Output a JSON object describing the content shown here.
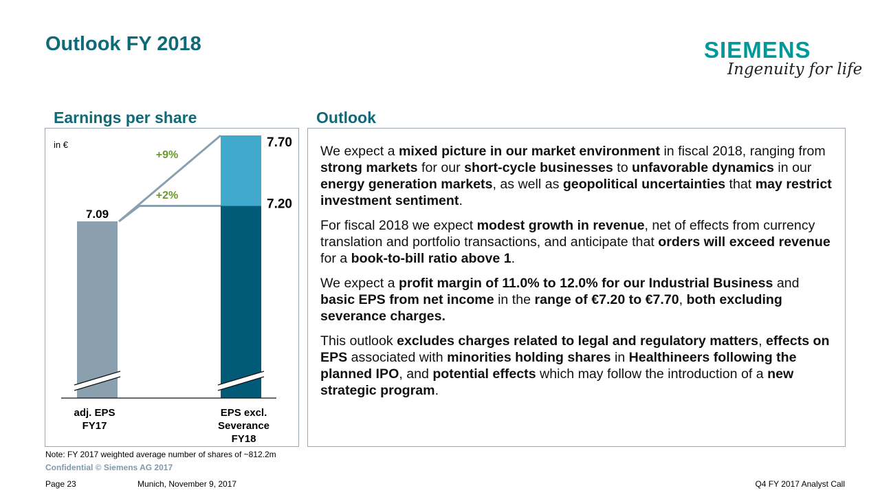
{
  "header": {
    "title": "Outlook FY 2018",
    "logo_text": "SIEMENS",
    "tagline": "Ingenuity for life"
  },
  "eps_section": {
    "title": "Earnings per share"
  },
  "outlook_section": {
    "title": "Outlook",
    "paragraphs": [
      [
        {
          "t": "We expect a ",
          "b": false
        },
        {
          "t": "mixed picture in our market environment",
          "b": true
        },
        {
          "t": " in fiscal 2018, ranging from ",
          "b": false
        },
        {
          "t": "strong markets",
          "b": true
        },
        {
          "t": " for our ",
          "b": false
        },
        {
          "t": "short-cycle businesses",
          "b": true
        },
        {
          "t": " to ",
          "b": false
        },
        {
          "t": "unfavorable dynamics",
          "b": true
        },
        {
          "t": " in our ",
          "b": false
        },
        {
          "t": "energy generation markets",
          "b": true
        },
        {
          "t": ", as well as ",
          "b": false
        },
        {
          "t": "geopolitical uncertainties",
          "b": true
        },
        {
          "t": " that ",
          "b": false
        },
        {
          "t": "may restrict investment sentiment",
          "b": true
        },
        {
          "t": ".",
          "b": false
        }
      ],
      [
        {
          "t": "For fiscal 2018 we expect ",
          "b": false
        },
        {
          "t": "modest growth in revenue",
          "b": true
        },
        {
          "t": ", net of effects from currency translation and portfolio transactions, and anticipate that ",
          "b": false
        },
        {
          "t": "orders will exceed revenue",
          "b": true
        },
        {
          "t": " for a ",
          "b": false
        },
        {
          "t": "book-to-bill ratio above 1",
          "b": true
        },
        {
          "t": ".",
          "b": false
        }
      ],
      [
        {
          "t": "We expect a ",
          "b": false
        },
        {
          "t": "profit margin of 11.0% to 12.0% for our Industrial Business",
          "b": true
        },
        {
          "t": " and ",
          "b": false
        },
        {
          "t": "basic EPS from net income",
          "b": true
        },
        {
          "t": " in the ",
          "b": false
        },
        {
          "t": "range of €7.20 to €7.70",
          "b": true
        },
        {
          "t": ", ",
          "b": false
        },
        {
          "t": "both excluding severance charges.",
          "b": true
        }
      ],
      [
        {
          "t": "This outlook ",
          "b": false
        },
        {
          "t": "excludes charges related to legal and regulatory matters",
          "b": true
        },
        {
          "t": ", ",
          "b": false
        },
        {
          "t": "effects on EPS",
          "b": true
        },
        {
          "t": " associated with ",
          "b": false
        },
        {
          "t": "minorities holding shares",
          "b": true
        },
        {
          "t": " in ",
          "b": false
        },
        {
          "t": "Healthineers following the planned IPO",
          "b": true
        },
        {
          "t": ", and ",
          "b": false
        },
        {
          "t": "potential effects",
          "b": true
        },
        {
          "t": " which may follow the introduction of a ",
          "b": false
        },
        {
          "t": "new strategic program",
          "b": true
        },
        {
          "t": ".",
          "b": false
        }
      ]
    ]
  },
  "chart_data": {
    "type": "bar",
    "unit_label": "in €",
    "categories": [
      [
        "adj. EPS",
        "FY17"
      ],
      [
        "EPS excl.",
        "Severance",
        "FY18"
      ]
    ],
    "bars": [
      {
        "value": 7.09,
        "label": "7.09",
        "color": "#8aa0ae"
      },
      {
        "low": 7.2,
        "high": 7.7,
        "low_label": "7.20",
        "high_label": "7.70",
        "color_low": "#005a78",
        "color_high": "#41aacc"
      }
    ],
    "growth_labels": [
      {
        "text": "+9%",
        "to": 7.7
      },
      {
        "text": "+2%",
        "to": 7.2
      }
    ],
    "growth_color": "#6a9a2a",
    "axis_break": true
  },
  "footer": {
    "note": "Note: FY 2017 weighted average number of shares of ~812.2m",
    "confidential": "Confidential © Siemens AG 2017",
    "page": "Page 23",
    "place_date": "Munich, November 9, 2017",
    "event": "Q4 FY 2017 Analyst Call"
  }
}
